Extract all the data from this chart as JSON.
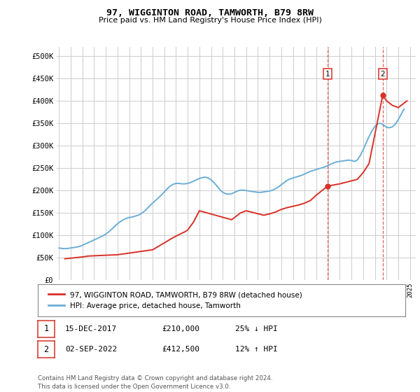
{
  "title": "97, WIGGINTON ROAD, TAMWORTH, B79 8RW",
  "subtitle": "Price paid vs. HM Land Registry's House Price Index (HPI)",
  "ylabel_ticks": [
    "£0",
    "£50K",
    "£100K",
    "£150K",
    "£200K",
    "£250K",
    "£300K",
    "£350K",
    "£400K",
    "£450K",
    "£500K"
  ],
  "ytick_values": [
    0,
    50000,
    100000,
    150000,
    200000,
    250000,
    300000,
    350000,
    400000,
    450000,
    500000
  ],
  "ylim": [
    0,
    520000
  ],
  "xlim_start": 1994.8,
  "xlim_end": 2025.5,
  "xticks": [
    1995,
    1996,
    1997,
    1998,
    1999,
    2000,
    2001,
    2002,
    2003,
    2004,
    2005,
    2006,
    2007,
    2008,
    2009,
    2010,
    2011,
    2012,
    2013,
    2014,
    2015,
    2016,
    2017,
    2018,
    2019,
    2020,
    2021,
    2022,
    2023,
    2024,
    2025
  ],
  "hpi_color": "#6baed6",
  "price_color": "#d73027",
  "vline_color": "#d73027",
  "marker1_x": 2017.96,
  "marker1_y": 210000,
  "marker2_x": 2022.67,
  "marker2_y": 412500,
  "legend_label1": "97, WIGGINTON ROAD, TAMWORTH, B79 8RW (detached house)",
  "legend_label2": "HPI: Average price, detached house, Tamworth",
  "table_row1": [
    "1",
    "15-DEC-2017",
    "£210,000",
    "25% ↓ HPI"
  ],
  "table_row2": [
    "2",
    "02-SEP-2022",
    "£412,500",
    "12% ↑ HPI"
  ],
  "footer": "Contains HM Land Registry data © Crown copyright and database right 2024.\nThis data is licensed under the Open Government Licence v3.0.",
  "bg_color": "#ffffff",
  "plot_bg_color": "#ffffff",
  "grid_color": "#cccccc",
  "hpi_data_x": [
    1995.0,
    1995.25,
    1995.5,
    1995.75,
    1996.0,
    1996.25,
    1996.5,
    1996.75,
    1997.0,
    1997.25,
    1997.5,
    1997.75,
    1998.0,
    1998.25,
    1998.5,
    1998.75,
    1999.0,
    1999.25,
    1999.5,
    1999.75,
    2000.0,
    2000.25,
    2000.5,
    2000.75,
    2001.0,
    2001.25,
    2001.5,
    2001.75,
    2002.0,
    2002.25,
    2002.5,
    2002.75,
    2003.0,
    2003.25,
    2003.5,
    2003.75,
    2004.0,
    2004.25,
    2004.5,
    2004.75,
    2005.0,
    2005.25,
    2005.5,
    2005.75,
    2006.0,
    2006.25,
    2006.5,
    2006.75,
    2007.0,
    2007.25,
    2007.5,
    2007.75,
    2008.0,
    2008.25,
    2008.5,
    2008.75,
    2009.0,
    2009.25,
    2009.5,
    2009.75,
    2010.0,
    2010.25,
    2010.5,
    2010.75,
    2011.0,
    2011.25,
    2011.5,
    2011.75,
    2012.0,
    2012.25,
    2012.5,
    2012.75,
    2013.0,
    2013.25,
    2013.5,
    2013.75,
    2014.0,
    2014.25,
    2014.5,
    2014.75,
    2015.0,
    2015.25,
    2015.5,
    2015.75,
    2016.0,
    2016.25,
    2016.5,
    2016.75,
    2017.0,
    2017.25,
    2017.5,
    2017.75,
    2018.0,
    2018.25,
    2018.5,
    2018.75,
    2019.0,
    2019.25,
    2019.5,
    2019.75,
    2020.0,
    2020.25,
    2020.5,
    2020.75,
    2021.0,
    2021.25,
    2021.5,
    2021.75,
    2022.0,
    2022.25,
    2022.5,
    2022.75,
    2023.0,
    2023.25,
    2023.5,
    2023.75,
    2024.0,
    2024.25,
    2024.5
  ],
  "hpi_data_y": [
    72000,
    71000,
    70500,
    71000,
    72000,
    73000,
    74000,
    75500,
    78000,
    81000,
    84000,
    87000,
    90000,
    93000,
    96000,
    99000,
    103000,
    108000,
    114000,
    120000,
    126000,
    131000,
    135000,
    138000,
    140000,
    141000,
    143000,
    145000,
    148000,
    153000,
    159000,
    166000,
    172000,
    178000,
    184000,
    190000,
    197000,
    204000,
    210000,
    214000,
    216000,
    216000,
    215000,
    215000,
    216000,
    218000,
    221000,
    224000,
    227000,
    229000,
    230000,
    228000,
    224000,
    218000,
    210000,
    202000,
    196000,
    193000,
    192000,
    193000,
    196000,
    199000,
    201000,
    201000,
    200000,
    199000,
    198000,
    197000,
    196000,
    196000,
    197000,
    198000,
    199000,
    201000,
    204000,
    208000,
    213000,
    218000,
    223000,
    226000,
    228000,
    230000,
    232000,
    234000,
    237000,
    240000,
    243000,
    245000,
    247000,
    249000,
    251000,
    253000,
    256000,
    259000,
    262000,
    264000,
    265000,
    266000,
    267000,
    268000,
    267000,
    265000,
    268000,
    278000,
    291000,
    306000,
    320000,
    333000,
    343000,
    349000,
    350000,
    346000,
    341000,
    340000,
    342000,
    348000,
    358000,
    370000,
    382000
  ],
  "price_data_x": [
    1995.5,
    1997.0,
    1997.5,
    2000.0,
    2003.0,
    2004.75,
    2005.5,
    2005.75,
    2006.0,
    2006.5,
    2007.0,
    2009.75,
    2010.5,
    2011.0,
    2012.5,
    2013.0,
    2013.5,
    2014.0,
    2014.5,
    2015.5,
    2016.0,
    2016.5,
    2017.0,
    2017.96,
    2019.0,
    2020.5,
    2021.0,
    2021.5,
    2022.67,
    2023.0,
    2023.25,
    2023.5,
    2024.0,
    2024.25,
    2024.5,
    2024.75
  ],
  "price_data_y": [
    48000,
    52000,
    54000,
    57000,
    68000,
    95000,
    105000,
    108000,
    112000,
    130000,
    155000,
    135000,
    150000,
    155000,
    145000,
    148000,
    152000,
    158000,
    162000,
    168000,
    172000,
    178000,
    190000,
    210000,
    215000,
    225000,
    240000,
    260000,
    412500,
    400000,
    395000,
    390000,
    385000,
    390000,
    395000,
    400000
  ]
}
